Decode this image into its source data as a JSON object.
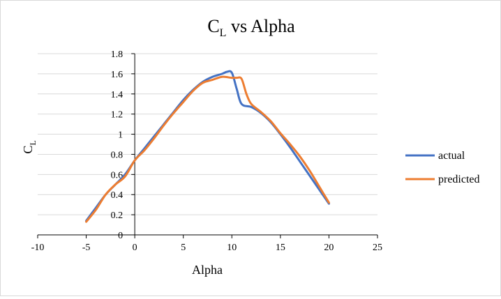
{
  "chart_data": {
    "type": "line",
    "title": "C",
    "title_subscript": "L",
    "title_suffix": " vs Alpha",
    "xlabel": "Alpha",
    "ylabel": "C",
    "ylabel_subscript": "L",
    "xlim": [
      -10,
      25
    ],
    "ylim": [
      0,
      1.8
    ],
    "xticks": [
      -10,
      -5,
      0,
      5,
      10,
      15,
      20,
      25
    ],
    "yticks": [
      0,
      0.2,
      0.4,
      0.6,
      0.8,
      1,
      1.2,
      1.4,
      1.6,
      1.8
    ],
    "xtick_labels": [
      "-10",
      "-5",
      "0",
      "5",
      "10",
      "15",
      "20",
      "25"
    ],
    "ytick_labels": [
      "0",
      "0.2",
      "0.4",
      "0.6",
      "0.8",
      "1",
      "1.2",
      "1.4",
      "1.6",
      "1.8"
    ],
    "grid": "horizontal",
    "legend_position": "right",
    "series": [
      {
        "name": "actual",
        "color": "#4472C4",
        "x": [
          -5,
          -4,
          -3,
          -2,
          -1,
          0,
          1,
          2,
          3,
          4,
          5,
          6,
          7,
          8,
          9,
          9.5,
          10,
          10.5,
          11,
          12,
          13,
          14,
          15,
          16,
          17,
          18,
          19,
          20
        ],
        "y": [
          0.14,
          0.27,
          0.4,
          0.5,
          0.6,
          0.74,
          0.86,
          0.98,
          1.1,
          1.22,
          1.34,
          1.44,
          1.52,
          1.57,
          1.6,
          1.62,
          1.61,
          1.45,
          1.3,
          1.27,
          1.21,
          1.12,
          1.0,
          0.87,
          0.73,
          0.59,
          0.45,
          0.31
        ]
      },
      {
        "name": "predicted",
        "color": "#ED7D31",
        "x": [
          -5,
          -4,
          -3,
          -2,
          -1,
          0,
          1,
          2,
          3,
          4,
          5,
          6,
          7,
          8,
          9,
          10,
          10.5,
          11,
          11.5,
          12,
          13,
          14,
          15,
          16,
          17,
          18,
          19,
          20
        ],
        "y": [
          0.13,
          0.25,
          0.4,
          0.5,
          0.58,
          0.74,
          0.84,
          0.96,
          1.09,
          1.21,
          1.32,
          1.43,
          1.51,
          1.54,
          1.57,
          1.56,
          1.56,
          1.55,
          1.4,
          1.3,
          1.22,
          1.13,
          1.01,
          0.9,
          0.78,
          0.64,
          0.48,
          0.32
        ]
      }
    ]
  }
}
